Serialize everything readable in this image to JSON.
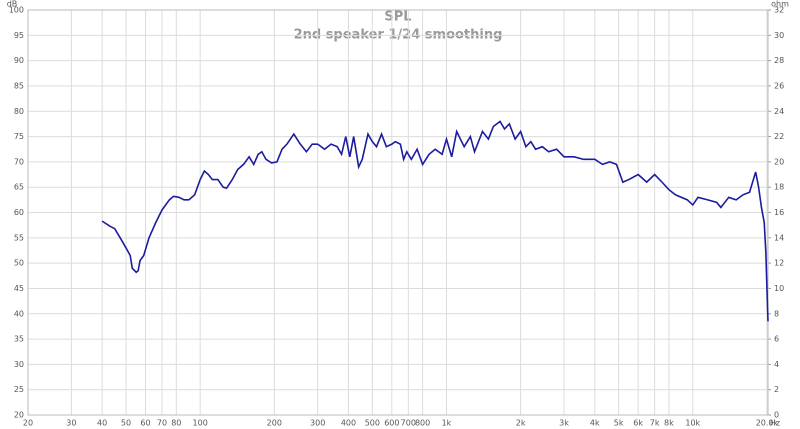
{
  "chart_data": {
    "type": "line",
    "title": "SPL",
    "subtitle": "2nd speaker 1/24 smoothing",
    "ylabel": "dB",
    "y2label": "ohm",
    "xlabel": "Hz",
    "xscale": "log",
    "grid": true,
    "xlim": [
      20,
      20200
    ],
    "ylim": [
      20,
      100
    ],
    "y2lim": [
      0,
      32
    ],
    "xticks": [
      20,
      30,
      40,
      50,
      60,
      70,
      80,
      100,
      200,
      300,
      400,
      500,
      600,
      700,
      800,
      {
        "value": 1000,
        "label": "1k"
      },
      {
        "value": 2000,
        "label": "2k"
      },
      {
        "value": 3000,
        "label": "3k"
      },
      {
        "value": 4000,
        "label": "4k"
      },
      {
        "value": 5000,
        "label": "5k"
      },
      {
        "value": 6000,
        "label": "6k"
      },
      {
        "value": 7000,
        "label": "7k"
      },
      {
        "value": 8000,
        "label": "8k"
      },
      {
        "value": 10000,
        "label": "10k"
      },
      {
        "value": 20000,
        "label": "20.0k"
      }
    ],
    "yticks": [
      20,
      25,
      30,
      35,
      40,
      45,
      50,
      55,
      60,
      65,
      70,
      75,
      80,
      85,
      90,
      95,
      100
    ],
    "y2ticks": [
      0,
      2,
      4,
      6,
      8,
      10,
      12,
      14,
      16,
      18,
      20,
      22,
      24,
      26,
      28,
      30,
      32
    ],
    "x": [
      40,
      43,
      45,
      48,
      50,
      52,
      53,
      55,
      56,
      57,
      59,
      62,
      66,
      70,
      75,
      78,
      82,
      86,
      90,
      95,
      100,
      104,
      108,
      112,
      118,
      124,
      128,
      135,
      142,
      150,
      158,
      165,
      172,
      178,
      185,
      195,
      205,
      215,
      225,
      240,
      255,
      270,
      285,
      300,
      320,
      340,
      360,
      375,
      390,
      405,
      420,
      440,
      455,
      480,
      500,
      520,
      545,
      570,
      600,
      620,
      650,
      670,
      690,
      720,
      760,
      800,
      850,
      900,
      960,
      1000,
      1050,
      1100,
      1180,
      1250,
      1300,
      1400,
      1480,
      1550,
      1650,
      1720,
      1800,
      1900,
      2000,
      2100,
      2200,
      2300,
      2450,
      2600,
      2800,
      3000,
      3300,
      3600,
      4000,
      4300,
      4600,
      4900,
      5200,
      5500,
      6000,
      6500,
      7000,
      7500,
      8000,
      8500,
      9500,
      10000,
      10500,
      11500,
      12500,
      13000,
      14000,
      15000,
      16000,
      17000,
      18000,
      18500,
      19000,
      19500,
      19800,
      20000,
      20200
    ],
    "series": [
      {
        "name": "SPL",
        "color": "#1c1ca0",
        "values": [
          58.3,
          57.3,
          56.8,
          54.5,
          53,
          51.5,
          49,
          48.2,
          48.5,
          50.5,
          51.5,
          55,
          58,
          60.5,
          62.5,
          63.2,
          63,
          62.5,
          62.5,
          63.5,
          66.5,
          68.2,
          67.5,
          66.5,
          66.5,
          65,
          64.8,
          66.5,
          68.5,
          69.5,
          71,
          69.5,
          71.5,
          72,
          70.5,
          69.8,
          70,
          72.5,
          73.5,
          75.5,
          73.5,
          72,
          73.5,
          73.5,
          72.5,
          73.5,
          73,
          71.5,
          75,
          71,
          75,
          69,
          70.5,
          75.5,
          74,
          73,
          75.5,
          73,
          73.5,
          74,
          73.5,
          70.5,
          72,
          70.5,
          72.5,
          69.5,
          71.5,
          72.5,
          71.5,
          74.5,
          71,
          76,
          73,
          75,
          72,
          76,
          74.5,
          77,
          78,
          76.5,
          77.5,
          74.5,
          76,
          73,
          74,
          72.5,
          73,
          72,
          72.5,
          71,
          71,
          70.5,
          70.5,
          69.5,
          70,
          69.5,
          66,
          66.5,
          67.5,
          66,
          67.5,
          66,
          64.5,
          63.5,
          62.5,
          61.5,
          63,
          62.5,
          62,
          61,
          63,
          62.5,
          63.5,
          64,
          68,
          65,
          61,
          58,
          52,
          45,
          38.5
        ]
      }
    ]
  }
}
